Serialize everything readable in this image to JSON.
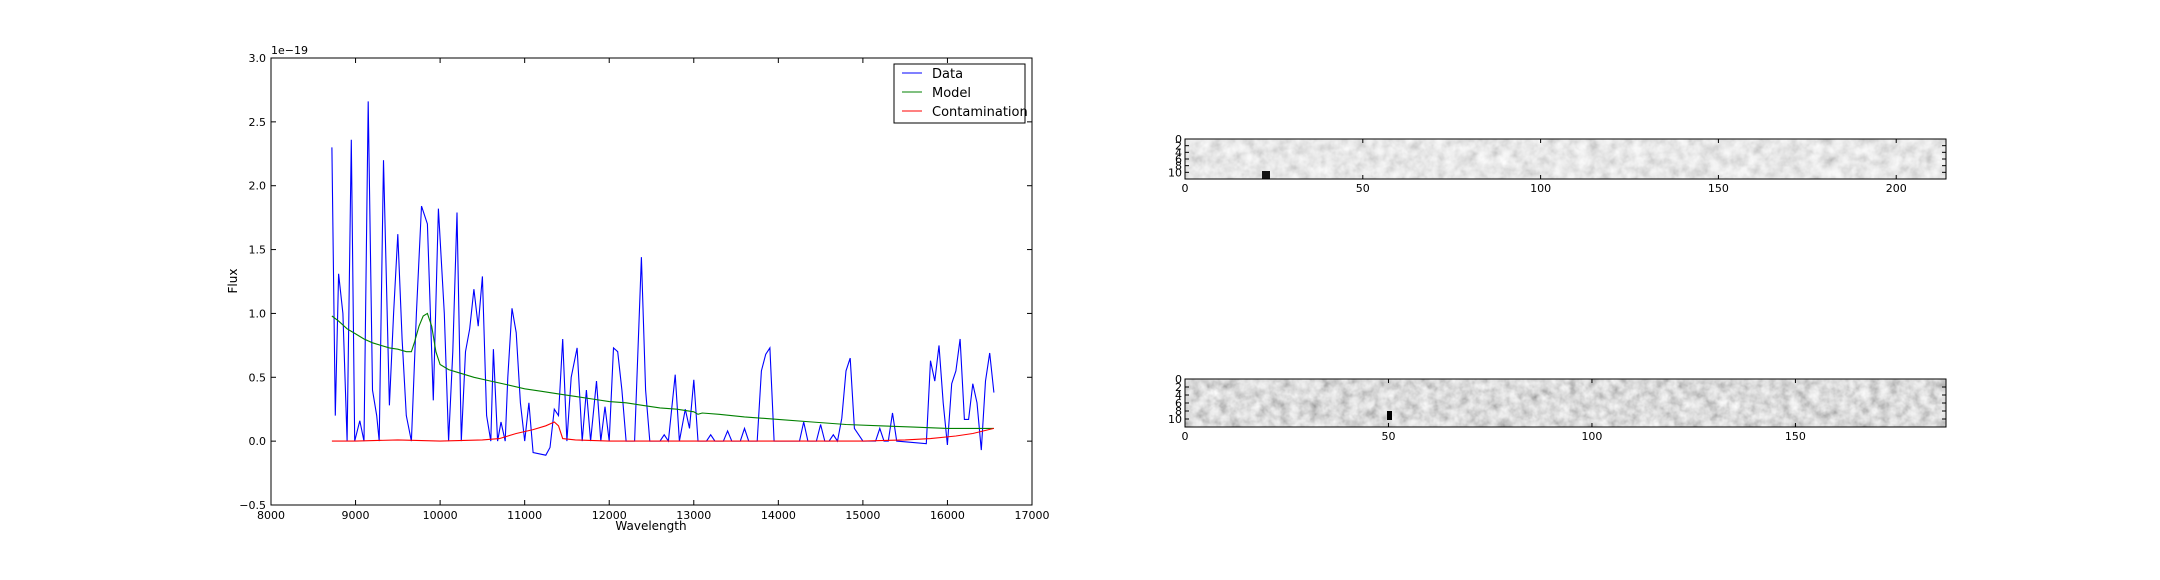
{
  "chart_data": [
    {
      "type": "line",
      "xlabel": "Wavelength",
      "ylabel": "Flux",
      "y_offset_label": "1e−19",
      "xlim": [
        8000,
        17000
      ],
      "ylim": [
        -0.5,
        3.0
      ],
      "x_ticks": [
        "8000",
        "9000",
        "10000",
        "11000",
        "12000",
        "13000",
        "14000",
        "15000",
        "16000",
        "17000"
      ],
      "y_ticks": [
        "−0.5",
        "0.0",
        "0.5",
        "1.0",
        "1.5",
        "2.0",
        "2.5",
        "3.0"
      ],
      "grid": false,
      "legend_position": "top-right",
      "series": [
        {
          "name": "Data",
          "color": "#0000ff",
          "points": [
            [
              8720,
              2.3
            ],
            [
              8760,
              0.2
            ],
            [
              8800,
              1.31
            ],
            [
              8850,
              1.0
            ],
            [
              8900,
              0.0
            ],
            [
              8950,
              2.36
            ],
            [
              8990,
              0.0
            ],
            [
              9050,
              0.16
            ],
            [
              9100,
              0.0
            ],
            [
              9150,
              2.66
            ],
            [
              9200,
              0.4
            ],
            [
              9250,
              0.2
            ],
            [
              9280,
              0.0
            ],
            [
              9330,
              2.2
            ],
            [
              9400,
              0.28
            ],
            [
              9450,
              1.0
            ],
            [
              9500,
              1.62
            ],
            [
              9550,
              0.8
            ],
            [
              9600,
              0.2
            ],
            [
              9660,
              0.0
            ],
            [
              9720,
              1.0
            ],
            [
              9780,
              1.84
            ],
            [
              9850,
              1.7
            ],
            [
              9920,
              0.32
            ],
            [
              9980,
              1.82
            ],
            [
              10050,
              1.0
            ],
            [
              10100,
              0.0
            ],
            [
              10150,
              0.7
            ],
            [
              10200,
              1.79
            ],
            [
              10250,
              0.0
            ],
            [
              10300,
              0.7
            ],
            [
              10350,
              0.88
            ],
            [
              10400,
              1.19
            ],
            [
              10450,
              0.9
            ],
            [
              10500,
              1.29
            ],
            [
              10550,
              0.2
            ],
            [
              10600,
              0.0
            ],
            [
              10630,
              0.72
            ],
            [
              10680,
              0.0
            ],
            [
              10720,
              0.15
            ],
            [
              10770,
              0.0
            ],
            [
              10800,
              0.5
            ],
            [
              10850,
              1.04
            ],
            [
              10900,
              0.85
            ],
            [
              10950,
              0.3
            ],
            [
              11000,
              0.0
            ],
            [
              11050,
              0.3
            ],
            [
              11100,
              -0.09
            ],
            [
              11250,
              -0.11
            ],
            [
              11300,
              -0.05
            ],
            [
              11350,
              0.25
            ],
            [
              11400,
              0.2
            ],
            [
              11450,
              0.8
            ],
            [
              11500,
              0.0
            ],
            [
              11550,
              0.5
            ],
            [
              11620,
              0.73
            ],
            [
              11680,
              0.0
            ],
            [
              11730,
              0.4
            ],
            [
              11780,
              0.0
            ],
            [
              11850,
              0.47
            ],
            [
              11900,
              0.0
            ],
            [
              11950,
              0.27
            ],
            [
              12000,
              0.0
            ],
            [
              12050,
              0.73
            ],
            [
              12100,
              0.7
            ],
            [
              12150,
              0.4
            ],
            [
              12200,
              0.0
            ],
            [
              12300,
              0.0
            ],
            [
              12380,
              1.44
            ],
            [
              12430,
              0.4
            ],
            [
              12480,
              0.0
            ],
            [
              12600,
              0.0
            ],
            [
              12650,
              0.05
            ],
            [
              12700,
              0.0
            ],
            [
              12780,
              0.52
            ],
            [
              12830,
              0.0
            ],
            [
              12900,
              0.25
            ],
            [
              12950,
              0.1
            ],
            [
              13000,
              0.48
            ],
            [
              13050,
              0.0
            ],
            [
              13150,
              0.0
            ],
            [
              13200,
              0.05
            ],
            [
              13250,
              0.0
            ],
            [
              13350,
              0.0
            ],
            [
              13400,
              0.08
            ],
            [
              13450,
              0.0
            ],
            [
              13550,
              0.0
            ],
            [
              13600,
              0.1
            ],
            [
              13650,
              0.0
            ],
            [
              13750,
              0.0
            ],
            [
              13800,
              0.55
            ],
            [
              13850,
              0.68
            ],
            [
              13900,
              0.73
            ],
            [
              13950,
              0.0
            ],
            [
              14250,
              0.0
            ],
            [
              14300,
              0.15
            ],
            [
              14350,
              0.0
            ],
            [
              14450,
              0.0
            ],
            [
              14500,
              0.13
            ],
            [
              14550,
              0.0
            ],
            [
              14600,
              0.0
            ],
            [
              14650,
              0.05
            ],
            [
              14700,
              0.0
            ],
            [
              14750,
              0.18
            ],
            [
              14800,
              0.55
            ],
            [
              14850,
              0.65
            ],
            [
              14900,
              0.1
            ],
            [
              14950,
              0.05
            ],
            [
              15000,
              0.0
            ],
            [
              15150,
              0.0
            ],
            [
              15200,
              0.1
            ],
            [
              15250,
              0.0
            ],
            [
              15300,
              0.0
            ],
            [
              15350,
              0.22
            ],
            [
              15400,
              0.0
            ],
            [
              15750,
              -0.02
            ],
            [
              15800,
              0.63
            ],
            [
              15850,
              0.47
            ],
            [
              15900,
              0.75
            ],
            [
              15950,
              0.3
            ],
            [
              16000,
              -0.03
            ],
            [
              16050,
              0.45
            ],
            [
              16100,
              0.55
            ],
            [
              16150,
              0.8
            ],
            [
              16200,
              0.17
            ],
            [
              16250,
              0.17
            ],
            [
              16300,
              0.45
            ],
            [
              16350,
              0.3
            ],
            [
              16400,
              -0.07
            ],
            [
              16450,
              0.47
            ],
            [
              16500,
              0.69
            ],
            [
              16550,
              0.38
            ]
          ]
        },
        {
          "name": "Model",
          "color": "#008000",
          "points": [
            [
              8720,
              0.98
            ],
            [
              8800,
              0.94
            ],
            [
              8900,
              0.88
            ],
            [
              9000,
              0.84
            ],
            [
              9100,
              0.8
            ],
            [
              9200,
              0.77
            ],
            [
              9300,
              0.75
            ],
            [
              9400,
              0.73
            ],
            [
              9500,
              0.72
            ],
            [
              9600,
              0.7
            ],
            [
              9660,
              0.7
            ],
            [
              9700,
              0.78
            ],
            [
              9750,
              0.9
            ],
            [
              9800,
              0.98
            ],
            [
              9850,
              1.0
            ],
            [
              9900,
              0.9
            ],
            [
              9950,
              0.7
            ],
            [
              10000,
              0.6
            ],
            [
              10100,
              0.56
            ],
            [
              10200,
              0.54
            ],
            [
              10400,
              0.5
            ],
            [
              10600,
              0.47
            ],
            [
              10800,
              0.44
            ],
            [
              11000,
              0.41
            ],
            [
              11200,
              0.39
            ],
            [
              11400,
              0.37
            ],
            [
              11600,
              0.35
            ],
            [
              11800,
              0.33
            ],
            [
              12000,
              0.31
            ],
            [
              12200,
              0.3
            ],
            [
              12400,
              0.28
            ],
            [
              12600,
              0.26
            ],
            [
              12800,
              0.25
            ],
            [
              13000,
              0.23
            ],
            [
              13050,
              0.21
            ],
            [
              13100,
              0.22
            ],
            [
              13300,
              0.21
            ],
            [
              13600,
              0.19
            ],
            [
              14000,
              0.17
            ],
            [
              14400,
              0.15
            ],
            [
              14800,
              0.13
            ],
            [
              15200,
              0.12
            ],
            [
              15600,
              0.11
            ],
            [
              16000,
              0.1
            ],
            [
              16300,
              0.1
            ],
            [
              16550,
              0.1
            ]
          ]
        },
        {
          "name": "Contamination",
          "color": "#ff0000",
          "points": [
            [
              8720,
              0.0
            ],
            [
              9000,
              0.0
            ],
            [
              9500,
              0.01
            ],
            [
              10000,
              0.0
            ],
            [
              10500,
              0.01
            ],
            [
              10700,
              0.02
            ],
            [
              10900,
              0.06
            ],
            [
              11100,
              0.09
            ],
            [
              11250,
              0.12
            ],
            [
              11350,
              0.15
            ],
            [
              11400,
              0.12
            ],
            [
              11450,
              0.02
            ],
            [
              11600,
              0.01
            ],
            [
              12000,
              0.0
            ],
            [
              13000,
              0.0
            ],
            [
              14000,
              0.0
            ],
            [
              15000,
              0.0
            ],
            [
              15500,
              0.01
            ],
            [
              15800,
              0.02
            ],
            [
              16100,
              0.04
            ],
            [
              16300,
              0.06
            ],
            [
              16550,
              0.1
            ]
          ]
        }
      ]
    },
    {
      "type": "heatmap",
      "colormap": "grayscale",
      "x_ticks": [
        "0",
        "50",
        "100",
        "150",
        "200"
      ],
      "y_ticks": [
        "0",
        "2",
        "4",
        "6",
        "8",
        "10"
      ],
      "xlim": [
        0,
        214
      ],
      "ylim": [
        12,
        0
      ]
    },
    {
      "type": "heatmap",
      "colormap": "grayscale",
      "x_ticks": [
        "0",
        "50",
        "100",
        "150"
      ],
      "y_ticks": [
        "0",
        "2",
        "4",
        "6",
        "8",
        "10"
      ],
      "xlim": [
        0,
        187
      ],
      "ylim": [
        12,
        0
      ]
    }
  ]
}
